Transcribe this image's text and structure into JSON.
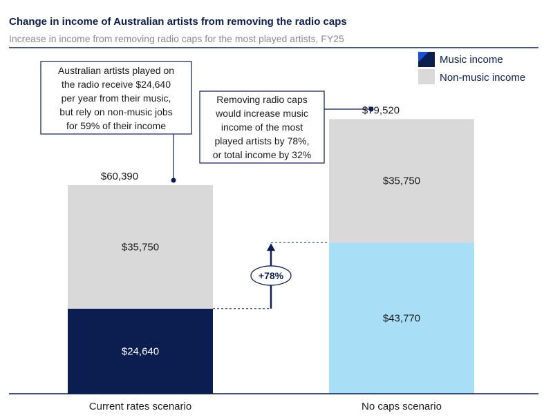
{
  "chart_data": {
    "type": "bar",
    "stacked": true,
    "title": "Change in income of Australian artists from removing the radio caps",
    "subtitle": "Increase in income from removing radio caps for the most played artists, FY25",
    "categories": [
      "Current rates scenario",
      "No caps scenario"
    ],
    "series": [
      {
        "name": "Music income",
        "values": [
          24640,
          43770
        ],
        "labels": [
          "$24,640",
          "$43,770"
        ],
        "colors": [
          "#0c1d4f",
          "#a9def7"
        ],
        "label_colors": [
          "#ffffff",
          "#1a1a1a"
        ]
      },
      {
        "name": "Non-music income",
        "values": [
          35750,
          35750
        ],
        "labels": [
          "$35,750",
          "$35,750"
        ],
        "colors": [
          "#d9d9d9",
          "#d9d9d9"
        ],
        "label_colors": [
          "#1a1a1a",
          "#1a1a1a"
        ]
      }
    ],
    "totals": [
      60390,
      79520
    ],
    "total_labels": [
      "$60,390",
      "$79,520"
    ],
    "ylim": [
      0,
      85000
    ],
    "grid": false,
    "legend_position": "top-right",
    "legend": {
      "music": "Music income",
      "non_music": "Non-music income",
      "music_color": "#0c1d4f",
      "music_accent": "#1a4fd8",
      "non_music_color": "#d9d9d9"
    },
    "annotations": {
      "left_callout": [
        "Australian artists played on",
        "the radio receive $24,640",
        "per year from their music,",
        "but rely on non-music jobs",
        "for 59% of their income"
      ],
      "right_callout": [
        "Removing radio caps",
        "would increase music",
        "income of the most",
        "played artists by 78%,",
        "or total income by 32%"
      ],
      "change_label": "+78%"
    },
    "colors": {
      "navy": "#0c1d4f",
      "axis": "#0c1d4f",
      "title_rule": "#0c1d4f"
    }
  }
}
